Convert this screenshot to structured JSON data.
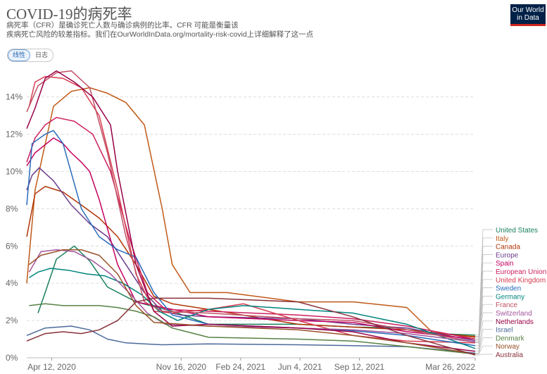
{
  "header": {
    "title": "COVID-19的病死率",
    "subtitle_line1": "病死率（CFR）是确诊死亡人数与确诊病例的比率。CFR 可能是衡量该",
    "subtitle_line2": "疾病死亡风险的较差指标。我们在OurWorldInData.org/mortality-risk-covid上详细解释了这一点"
  },
  "logo": {
    "line1": "Our World",
    "line2": "in Data"
  },
  "toggle": {
    "linear_label": "线性",
    "log_label": "日志",
    "selected": "linear"
  },
  "chart_data": {
    "type": "line",
    "title": "COVID-19的病死率",
    "ylabel": "",
    "xlabel": "",
    "x_range": [
      "2020-03-01",
      "2022-03-26"
    ],
    "ylim": [
      0,
      15.5
    ],
    "y_ticks": [
      {
        "value": 0,
        "label": "0%"
      },
      {
        "value": 2,
        "label": "2%"
      },
      {
        "value": 4,
        "label": "4%"
      },
      {
        "value": 6,
        "label": "6%"
      },
      {
        "value": 8,
        "label": "8%"
      },
      {
        "value": 10,
        "label": "10%"
      },
      {
        "value": 12,
        "label": "12%"
      },
      {
        "value": 14,
        "label": "14%"
      }
    ],
    "x_ticks": [
      {
        "date": "2020-04-12",
        "label": "Apr 12, 2020"
      },
      {
        "date": "2020-11-16",
        "label": "Nov 16, 2020"
      },
      {
        "date": "2021-02-24",
        "label": "Feb 24, 2021"
      },
      {
        "date": "2021-06-04",
        "label": "Jun 4, 2021"
      },
      {
        "date": "2021-09-12",
        "label": "Sep 12, 2021"
      },
      {
        "date": "2022-03-26",
        "label": "Mar 26, 2022"
      }
    ],
    "grid": "horizontal-dashed",
    "legend_placement": "right",
    "series": [
      {
        "name": "United States",
        "color": "#18805a",
        "points": [
          [
            "2020-03-20",
            2.4
          ],
          [
            "2020-04-01",
            3.5
          ],
          [
            "2020-04-20",
            5.3
          ],
          [
            "2020-05-20",
            6.0
          ],
          [
            "2020-06-15",
            5.2
          ],
          [
            "2020-07-15",
            3.8
          ],
          [
            "2020-09-01",
            3.0
          ],
          [
            "2020-11-01",
            2.5
          ],
          [
            "2021-01-01",
            1.8
          ],
          [
            "2021-03-01",
            1.8
          ],
          [
            "2021-06-01",
            1.8
          ],
          [
            "2021-09-01",
            1.65
          ],
          [
            "2021-12-01",
            1.6
          ],
          [
            "2022-01-15",
            1.3
          ],
          [
            "2022-03-26",
            1.22
          ]
        ]
      },
      {
        "name": "Italy",
        "color": "#c05917",
        "points": [
          [
            "2020-03-01",
            4.0
          ],
          [
            "2020-03-15",
            9.0
          ],
          [
            "2020-04-15",
            13.5
          ],
          [
            "2020-05-15",
            14.3
          ],
          [
            "2020-06-15",
            14.5
          ],
          [
            "2020-07-15",
            14.2
          ],
          [
            "2020-08-15",
            13.7
          ],
          [
            "2020-09-15",
            12.5
          ],
          [
            "2020-10-15",
            8.0
          ],
          [
            "2020-11-01",
            5.0
          ],
          [
            "2020-12-01",
            3.5
          ],
          [
            "2021-02-01",
            3.5
          ],
          [
            "2021-06-01",
            3.0
          ],
          [
            "2021-09-01",
            3.0
          ],
          [
            "2021-11-01",
            2.8
          ],
          [
            "2021-12-01",
            2.7
          ],
          [
            "2022-01-15",
            1.3
          ],
          [
            "2022-03-26",
            1.15
          ]
        ]
      },
      {
        "name": "Canada",
        "color": "#b13507",
        "points": [
          [
            "2020-03-01",
            6.5
          ],
          [
            "2020-03-15",
            8.8
          ],
          [
            "2020-04-01",
            9.2
          ],
          [
            "2020-05-01",
            8.9
          ],
          [
            "2020-06-01",
            8.2
          ],
          [
            "2020-07-01",
            7.5
          ],
          [
            "2020-08-01",
            6.5
          ],
          [
            "2020-09-01",
            5.0
          ],
          [
            "2020-10-01",
            3.3
          ],
          [
            "2020-11-01",
            2.9
          ],
          [
            "2021-01-01",
            2.6
          ],
          [
            "2021-06-01",
            1.8
          ],
          [
            "2021-12-01",
            1.5
          ],
          [
            "2022-02-01",
            1.3
          ],
          [
            "2022-03-26",
            1.1
          ]
        ]
      },
      {
        "name": "Europe",
        "color": "#6b3d8d",
        "points": [
          [
            "2020-03-01",
            9.0
          ],
          [
            "2020-03-10",
            9.8
          ],
          [
            "2020-03-22",
            10.2
          ],
          [
            "2020-04-15",
            9.5
          ],
          [
            "2020-05-15",
            8.2
          ],
          [
            "2020-06-15",
            7.2
          ],
          [
            "2020-07-15",
            6.5
          ],
          [
            "2020-08-15",
            5.0
          ],
          [
            "2020-09-15",
            3.5
          ],
          [
            "2020-10-15",
            2.5
          ],
          [
            "2020-11-15",
            2.3
          ],
          [
            "2021-01-01",
            2.2
          ],
          [
            "2021-06-01",
            2.1
          ],
          [
            "2021-09-01",
            1.8
          ],
          [
            "2021-12-01",
            1.6
          ],
          [
            "2022-03-26",
            0.92
          ]
        ]
      },
      {
        "name": "Spain",
        "color": "#c4005e",
        "points": [
          [
            "2020-03-01",
            10.3
          ],
          [
            "2020-03-15",
            11.0
          ],
          [
            "2020-04-15",
            11.8
          ],
          [
            "2020-05-01",
            11.5
          ],
          [
            "2020-05-15",
            11.0
          ],
          [
            "2020-06-01",
            10.5
          ],
          [
            "2020-06-15",
            10.0
          ],
          [
            "2020-07-01",
            8.5
          ],
          [
            "2020-08-01",
            5.0
          ],
          [
            "2020-09-01",
            3.0
          ],
          [
            "2020-10-01",
            2.8
          ],
          [
            "2021-01-01",
            2.2
          ],
          [
            "2021-06-01",
            2.0
          ],
          [
            "2021-09-01",
            1.9
          ],
          [
            "2021-12-01",
            1.4
          ],
          [
            "2022-03-26",
            1.0
          ]
        ]
      },
      {
        "name": "European Union",
        "color": "#cc1f5f",
        "points": [
          [
            "2020-03-01",
            10.5
          ],
          [
            "2020-03-15",
            11.8
          ],
          [
            "2020-04-01",
            12.5
          ],
          [
            "2020-04-20",
            12.9
          ],
          [
            "2020-05-20",
            12.7
          ],
          [
            "2020-06-20",
            12.0
          ],
          [
            "2020-07-20",
            10.0
          ],
          [
            "2020-08-20",
            6.5
          ],
          [
            "2020-09-20",
            3.5
          ],
          [
            "2020-10-20",
            2.6
          ],
          [
            "2021-01-01",
            2.5
          ],
          [
            "2021-06-01",
            2.3
          ],
          [
            "2021-09-01",
            2.1
          ],
          [
            "2021-12-01",
            1.7
          ],
          [
            "2022-03-26",
            1.0
          ]
        ]
      },
      {
        "name": "United Kingdom",
        "color": "#d73c50",
        "points": [
          [
            "2020-03-05",
            13.5
          ],
          [
            "2020-03-15",
            14.8
          ],
          [
            "2020-04-01",
            15.1
          ],
          [
            "2020-05-01",
            15.0
          ],
          [
            "2020-06-01",
            14.5
          ],
          [
            "2020-07-01",
            13.0
          ],
          [
            "2020-08-01",
            9.0
          ],
          [
            "2020-09-01",
            4.5
          ],
          [
            "2020-10-01",
            2.5
          ],
          [
            "2020-11-01",
            2.4
          ],
          [
            "2021-01-01",
            2.6
          ],
          [
            "2021-03-01",
            2.9
          ],
          [
            "2021-06-01",
            2.0
          ],
          [
            "2021-09-01",
            1.2
          ],
          [
            "2021-12-01",
            0.9
          ],
          [
            "2022-03-26",
            0.8
          ]
        ]
      },
      {
        "name": "Sweden",
        "color": "#286bbb",
        "points": [
          [
            "2020-03-01",
            8.2
          ],
          [
            "2020-03-10",
            11.5
          ],
          [
            "2020-04-01",
            12.0
          ],
          [
            "2020-04-15",
            12.2
          ],
          [
            "2020-05-01",
            11.5
          ],
          [
            "2020-06-01",
            8.0
          ],
          [
            "2020-07-01",
            6.5
          ],
          [
            "2020-08-01",
            5.8
          ],
          [
            "2020-09-01",
            5.4
          ],
          [
            "2020-10-01",
            3.5
          ],
          [
            "2020-11-01",
            2.3
          ],
          [
            "2021-01-01",
            1.8
          ],
          [
            "2021-06-01",
            1.6
          ],
          [
            "2021-09-01",
            1.45
          ],
          [
            "2021-12-01",
            1.2
          ],
          [
            "2022-03-26",
            0.65
          ]
        ]
      },
      {
        "name": "Germany",
        "color": "#00847e",
        "points": [
          [
            "2020-03-05",
            4.3
          ],
          [
            "2020-03-20",
            4.6
          ],
          [
            "2020-04-10",
            4.8
          ],
          [
            "2020-05-10",
            4.7
          ],
          [
            "2020-06-10",
            4.5
          ],
          [
            "2020-07-10",
            4.4
          ],
          [
            "2020-08-10",
            4.0
          ],
          [
            "2020-09-10",
            3.4
          ],
          [
            "2020-10-10",
            2.5
          ],
          [
            "2020-11-10",
            2.0
          ],
          [
            "2021-01-01",
            2.6
          ],
          [
            "2021-03-01",
            2.8
          ],
          [
            "2021-06-01",
            2.6
          ],
          [
            "2021-09-01",
            2.4
          ],
          [
            "2021-12-01",
            1.8
          ],
          [
            "2022-03-26",
            0.5
          ]
        ]
      },
      {
        "name": "France",
        "color": "#c15065",
        "points": [
          [
            "2020-03-01",
            13.2
          ],
          [
            "2020-03-20",
            14.6
          ],
          [
            "2020-04-20",
            15.3
          ],
          [
            "2020-05-15",
            15.4
          ],
          [
            "2020-06-15",
            14.5
          ],
          [
            "2020-07-15",
            11.0
          ],
          [
            "2020-08-15",
            6.5
          ],
          [
            "2020-09-15",
            3.0
          ],
          [
            "2020-10-15",
            2.5
          ],
          [
            "2021-01-01",
            2.4
          ],
          [
            "2021-06-01",
            2.1
          ],
          [
            "2021-09-01",
            2.0
          ],
          [
            "2021-12-01",
            1.5
          ],
          [
            "2022-03-26",
            0.85
          ]
        ]
      },
      {
        "name": "Switzerland",
        "color": "#a2559c",
        "points": [
          [
            "2020-03-05",
            4.6
          ],
          [
            "2020-03-25",
            5.7
          ],
          [
            "2020-04-20",
            5.8
          ],
          [
            "2020-05-20",
            5.7
          ],
          [
            "2020-06-20",
            5.2
          ],
          [
            "2020-07-20",
            4.5
          ],
          [
            "2020-08-20",
            3.5
          ],
          [
            "2020-09-20",
            2.4
          ],
          [
            "2020-10-20",
            1.8
          ],
          [
            "2021-01-01",
            1.7
          ],
          [
            "2021-06-01",
            1.6
          ],
          [
            "2021-09-01",
            1.5
          ],
          [
            "2021-12-01",
            1.3
          ],
          [
            "2022-03-26",
            0.85
          ]
        ]
      },
      {
        "name": "Netherlands",
        "color": "#970046",
        "points": [
          [
            "2020-03-01",
            12.3
          ],
          [
            "2020-03-15",
            13.4
          ],
          [
            "2020-04-01",
            15.0
          ],
          [
            "2020-04-20",
            15.4
          ],
          [
            "2020-05-20",
            14.8
          ],
          [
            "2020-06-20",
            14.0
          ],
          [
            "2020-07-20",
            12.5
          ],
          [
            "2020-08-01",
            10.0
          ],
          [
            "2020-09-01",
            5.0
          ],
          [
            "2020-10-01",
            2.5
          ],
          [
            "2020-11-01",
            1.7
          ],
          [
            "2021-01-01",
            1.8
          ],
          [
            "2021-06-01",
            1.6
          ],
          [
            "2021-09-01",
            1.4
          ],
          [
            "2021-12-01",
            0.8
          ],
          [
            "2022-03-26",
            0.35
          ]
        ]
      },
      {
        "name": "Israel",
        "color": "#4c6a9c",
        "points": [
          [
            "2020-03-01",
            1.2
          ],
          [
            "2020-04-01",
            1.6
          ],
          [
            "2020-05-15",
            1.7
          ],
          [
            "2020-06-15",
            1.5
          ],
          [
            "2020-07-15",
            1.0
          ],
          [
            "2020-08-15",
            0.8
          ],
          [
            "2020-09-15",
            0.75
          ],
          [
            "2020-10-15",
            0.7
          ],
          [
            "2021-01-01",
            0.75
          ],
          [
            "2021-06-01",
            0.7
          ],
          [
            "2021-09-01",
            0.65
          ],
          [
            "2021-12-01",
            0.6
          ],
          [
            "2022-03-26",
            0.25
          ]
        ]
      },
      {
        "name": "Denmark",
        "color": "#578145",
        "points": [
          [
            "2020-03-05",
            2.8
          ],
          [
            "2020-04-01",
            2.9
          ],
          [
            "2020-05-01",
            2.8
          ],
          [
            "2020-06-01",
            2.8
          ],
          [
            "2020-07-01",
            2.8
          ],
          [
            "2020-08-01",
            2.7
          ],
          [
            "2020-09-01",
            2.5
          ],
          [
            "2020-10-01",
            2.2
          ],
          [
            "2020-11-01",
            1.6
          ],
          [
            "2021-01-01",
            1.1
          ],
          [
            "2021-06-01",
            1.0
          ],
          [
            "2021-09-01",
            0.9
          ],
          [
            "2021-12-01",
            0.6
          ],
          [
            "2022-03-26",
            0.2
          ]
        ]
      },
      {
        "name": "Norway",
        "color": "#9a5129",
        "points": [
          [
            "2020-03-05",
            5.0
          ],
          [
            "2020-03-25",
            5.5
          ],
          [
            "2020-05-01",
            5.8
          ],
          [
            "2020-06-01",
            5.8
          ],
          [
            "2020-07-01",
            5.5
          ],
          [
            "2020-08-01",
            4.5
          ],
          [
            "2020-09-01",
            2.8
          ],
          [
            "2020-10-01",
            1.9
          ],
          [
            "2021-01-01",
            1.7
          ],
          [
            "2021-06-01",
            1.5
          ],
          [
            "2021-09-01",
            1.2
          ],
          [
            "2021-12-01",
            0.8
          ],
          [
            "2022-03-26",
            0.2
          ]
        ]
      },
      {
        "name": "Australia",
        "color": "#883039",
        "points": [
          [
            "2020-03-01",
            0.9
          ],
          [
            "2020-04-01",
            1.3
          ],
          [
            "2020-05-01",
            1.4
          ],
          [
            "2020-06-01",
            1.3
          ],
          [
            "2020-07-01",
            1.5
          ],
          [
            "2020-08-01",
            2.0
          ],
          [
            "2020-09-01",
            3.0
          ],
          [
            "2020-10-01",
            3.2
          ],
          [
            "2021-01-01",
            3.2
          ],
          [
            "2021-06-01",
            3.0
          ],
          [
            "2021-09-01",
            2.2
          ],
          [
            "2021-12-01",
            1.2
          ],
          [
            "2022-03-26",
            0.15
          ]
        ]
      }
    ]
  }
}
